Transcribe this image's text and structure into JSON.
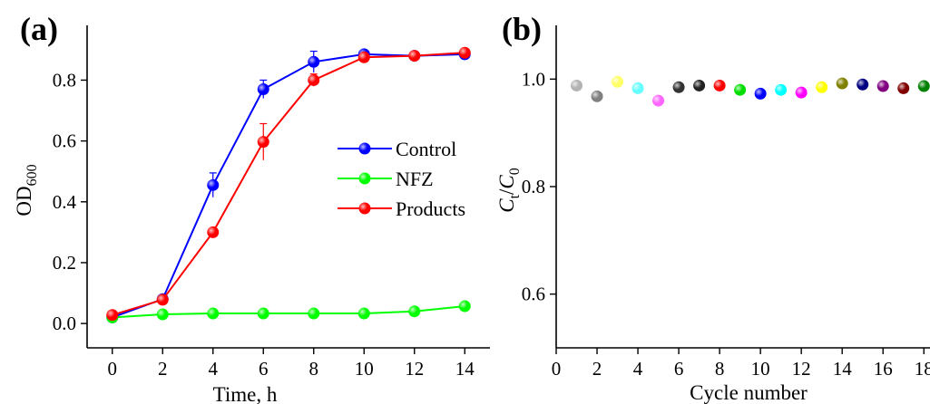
{
  "chart_data": [
    {
      "panel_label": "(a)",
      "type": "line",
      "xlabel": "Time, h",
      "ylabel": "OD600",
      "ylabel_main": "OD",
      "ylabel_sub": "600",
      "xlim": [
        -1,
        15
      ],
      "ylim": [
        -0.08,
        0.98
      ],
      "xticks": [
        0,
        2,
        4,
        6,
        8,
        10,
        12,
        14
      ],
      "yticks": [
        0.0,
        0.2,
        0.4,
        0.6,
        0.8
      ],
      "ytick_labels": [
        "0.0",
        "0.2",
        "0.4",
        "0.6",
        "0.8"
      ],
      "legend": {
        "position": "center-right"
      },
      "x": [
        0,
        2,
        4,
        6,
        8,
        10,
        12,
        14
      ],
      "series": [
        {
          "name": "Control",
          "color": "#0000ff",
          "values": [
            0.02,
            0.08,
            0.455,
            0.77,
            0.86,
            0.885,
            0.88,
            0.885
          ],
          "errors": [
            0,
            0.01,
            0.04,
            0.03,
            0.035,
            0.01,
            0.01,
            0.01
          ]
        },
        {
          "name": "NFZ",
          "color": "#00ff00",
          "values": [
            0.02,
            0.03,
            0.033,
            0.033,
            0.033,
            0.033,
            0.04,
            0.057
          ],
          "errors": [
            0,
            0,
            0,
            0,
            0,
            0,
            0,
            0
          ]
        },
        {
          "name": "Products",
          "color": "#ff0000",
          "values": [
            0.028,
            0.078,
            0.3,
            0.597,
            0.8,
            0.875,
            0.88,
            0.89
          ],
          "errors": [
            0,
            0.01,
            0,
            0.06,
            0.02,
            0.01,
            0.01,
            0.01
          ]
        }
      ]
    },
    {
      "panel_label": "(b)",
      "type": "scatter",
      "xlabel": "Cycle number",
      "ylabel": "Ct/C0",
      "ylabel_C": "C",
      "ylabel_t": "t",
      "ylabel_slash": "/",
      "ylabel_0": "0",
      "xlim": [
        0,
        18.3
      ],
      "ylim": [
        0.5,
        1.1
      ],
      "xticks": [
        0,
        2,
        4,
        6,
        8,
        10,
        12,
        14,
        16,
        18
      ],
      "yticks": [
        0.6,
        0.8,
        1.0
      ],
      "ytick_labels": [
        "0.6",
        "0.8",
        "1.0"
      ],
      "x": [
        1,
        2,
        3,
        4,
        5,
        6,
        7,
        8,
        9,
        10,
        11,
        12,
        13,
        14,
        15,
        16,
        17,
        18
      ],
      "y": [
        0.988,
        0.968,
        0.995,
        0.983,
        0.96,
        0.985,
        0.988,
        0.988,
        0.98,
        0.973,
        0.98,
        0.975,
        0.985,
        0.992,
        0.99,
        0.987,
        0.983,
        0.987
      ],
      "colors": [
        "#b3b3b3",
        "#808080",
        "#ffff66",
        "#66ffff",
        "#ff66ff",
        "#333333",
        "#222222",
        "#ff0000",
        "#00dd00",
        "#0000ff",
        "#00ffff",
        "#ff00ff",
        "#ffff00",
        "#808000",
        "#000080",
        "#800080",
        "#800000",
        "#008000"
      ]
    }
  ]
}
